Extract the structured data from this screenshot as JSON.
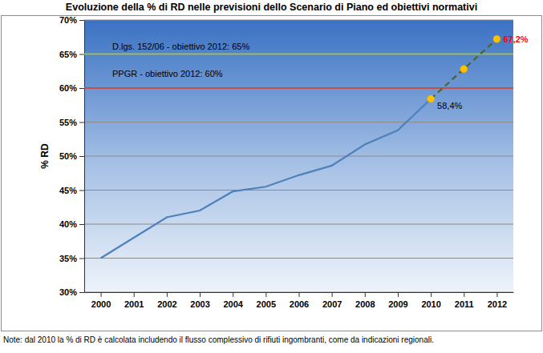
{
  "chart_data": {
    "type": "line",
    "title": "Evoluzione della % di RD nelle previsioni dello Scenario di Piano ed obiettivi normativi",
    "y_label": "% RD",
    "note": "Note: dal 2010 la % di RD è calcolata includendo il flusso complessivo di rifiuti ingombranti, come da indicazioni regionali.",
    "categories": [
      "2000",
      "2001",
      "2002",
      "2003",
      "2004",
      "2005",
      "2006",
      "2007",
      "2008",
      "2009",
      "2010",
      "2011",
      "2012"
    ],
    "series": [
      {
        "color": "#4f81bd",
        "line_style": "solid",
        "values": [
          35.0,
          38.0,
          41.0,
          42.0,
          44.8,
          45.5,
          47.2,
          48.6,
          51.7,
          53.8,
          58.4,
          null,
          null
        ]
      },
      {
        "color": "#4f6228",
        "line_style": "dashed",
        "marker": "circle",
        "values": [
          null,
          null,
          null,
          null,
          null,
          null,
          null,
          null,
          null,
          null,
          58.4,
          62.8,
          67.2
        ],
        "value_labels": [
          null,
          null,
          null,
          null,
          null,
          null,
          null,
          null,
          null,
          null,
          "58,4%",
          null,
          "67,2%"
        ]
      }
    ],
    "reference_lines": [
      {
        "value": 65,
        "label": "D.lgs. 152/06 - obiettivo 2012: 65%",
        "color": "#9bbb59"
      },
      {
        "value": 60,
        "label": "PPGR - obiettivo 2012: 60%",
        "color": "#c0504d"
      }
    ],
    "ylim": [
      30,
      70
    ],
    "yticks": [
      {
        "value": 30,
        "label": "30%"
      },
      {
        "value": 35,
        "label": "35%"
      },
      {
        "value": 40,
        "label": "40%"
      },
      {
        "value": 45,
        "label": "45%"
      },
      {
        "value": 50,
        "label": "50%"
      },
      {
        "value": 55,
        "label": "55%"
      },
      {
        "value": 60,
        "label": "60%"
      },
      {
        "value": 65,
        "label": "65%"
      },
      {
        "value": 70,
        "label": "70%"
      }
    ],
    "grid": true,
    "data_labels": true
  }
}
